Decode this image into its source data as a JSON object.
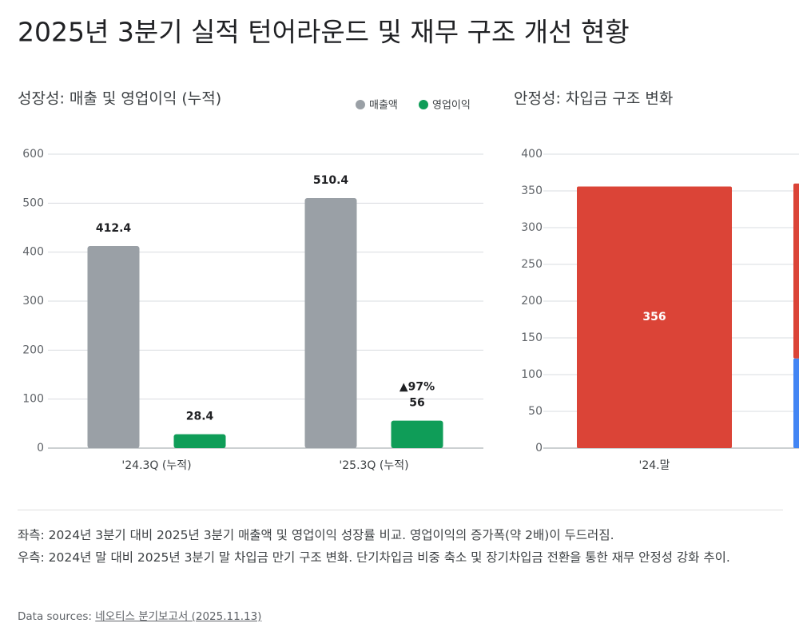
{
  "title": "2025년 3분기 실적 턴어라운드 및 재무 구조 개선 현황",
  "chart_data": [
    {
      "type": "bar",
      "title": "성장성: 매출 및 영업이익 (누적)",
      "categories": [
        "'24.3Q (누적)",
        "'25.3Q (누적)"
      ],
      "series": [
        {
          "name": "매출액",
          "color": "#9aa0a6",
          "values": [
            412.4,
            510.4
          ]
        },
        {
          "name": "영업이익",
          "color": "#0f9d58",
          "values": [
            28.4,
            56
          ]
        }
      ],
      "annotations": [
        "▲97%"
      ],
      "ylim": [
        0,
        600
      ],
      "yticks": [
        0,
        100,
        200,
        300,
        400,
        500,
        600
      ],
      "grid": true,
      "legend": "top-right"
    },
    {
      "type": "stacked_bar",
      "title": "안정성: 차입금 구조 변화",
      "categories": [
        "'24.말",
        null
      ],
      "series": [
        {
          "color": "#4285f4",
          "values": [
            0,
            122
          ]
        },
        {
          "color": "#db4437",
          "values": [
            356,
            238
          ]
        }
      ],
      "ylim": [
        0,
        400
      ],
      "yticks": [
        0,
        50,
        100,
        150,
        200,
        250,
        300,
        350,
        400
      ],
      "grid": true
    }
  ],
  "notes": [
    "좌측: 2024년 3분기 대비 2025년 3분기 매출액 및 영업이익 성장률 비교. 영업이익의 증가폭(약 2배)이 두드러짐.",
    "우측: 2024년 말 대비 2025년 3분기 말 차입금 만기 구조 변화. 단기차입금 비중 축소 및 장기차입금 전환을 통한 재무 안정성 강화 추이."
  ],
  "source": {
    "label": "Data sources:",
    "link": "네오티스 분기보고서 (2025.11.13)"
  }
}
